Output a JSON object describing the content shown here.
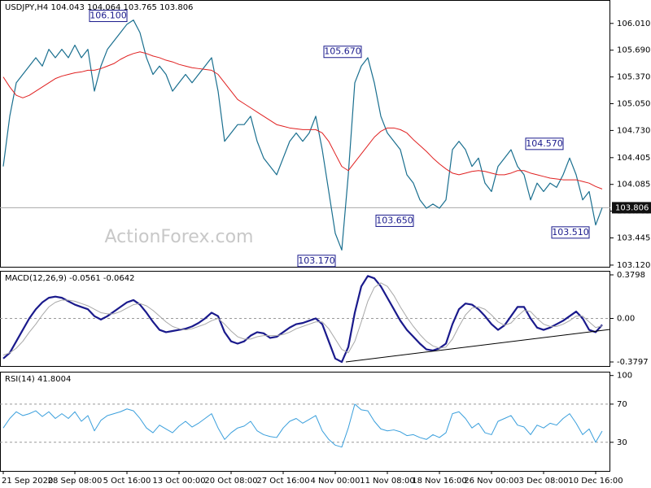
{
  "chart_data": [
    {
      "type": "line",
      "title": "USDJPY,H4 104.043 104.064 103.765 103.806",
      "watermark": "ActionForex.com",
      "ylim": [
        103.1,
        106.29
      ],
      "yticks": [
        {
          "value": 106.01,
          "label": "106.010"
        },
        {
          "value": 105.69,
          "label": "105.690"
        },
        {
          "value": 105.37,
          "label": "105.370"
        },
        {
          "value": 105.05,
          "label": "105.050"
        },
        {
          "value": 104.73,
          "label": "104.730"
        },
        {
          "value": 104.405,
          "label": "104.405"
        },
        {
          "value": 104.085,
          "label": "104.085"
        },
        {
          "value": 103.765,
          "label": "103.765"
        },
        {
          "value": 103.445,
          "label": "103.445"
        },
        {
          "value": 103.12,
          "label": "103.120"
        }
      ],
      "last_price": {
        "value": 103.806,
        "label": "103.806"
      },
      "annotations": [
        {
          "x": 19,
          "value": 106.1,
          "label": "106.100"
        },
        {
          "x": 55,
          "value": 105.67,
          "label": "105.670"
        },
        {
          "x": 51,
          "value": 103.17,
          "label": "103.170"
        },
        {
          "x": 63,
          "value": 103.65,
          "label": "103.650"
        },
        {
          "x": 86,
          "value": 104.57,
          "label": "104.570"
        },
        {
          "x": 90,
          "value": 103.51,
          "label": "103.510"
        }
      ],
      "series": [
        {
          "name": "USDJPY",
          "color": "#1a6f8f",
          "width": 1.2,
          "values": [
            104.3,
            104.9,
            105.3,
            105.4,
            105.5,
            105.6,
            105.5,
            105.7,
            105.6,
            105.7,
            105.6,
            105.75,
            105.6,
            105.7,
            105.2,
            105.5,
            105.7,
            105.8,
            105.9,
            106.0,
            106.05,
            105.9,
            105.6,
            105.4,
            105.5,
            105.4,
            105.2,
            105.3,
            105.4,
            105.3,
            105.4,
            105.5,
            105.6,
            105.2,
            104.6,
            104.7,
            104.8,
            104.8,
            104.9,
            104.6,
            104.4,
            104.3,
            104.2,
            104.4,
            104.6,
            104.7,
            104.6,
            104.7,
            104.9,
            104.5,
            104.0,
            103.5,
            103.3,
            104.2,
            105.3,
            105.5,
            105.6,
            105.3,
            104.9,
            104.7,
            104.6,
            104.5,
            104.2,
            104.1,
            103.9,
            103.8,
            103.85,
            103.8,
            103.9,
            104.5,
            104.6,
            104.5,
            104.3,
            104.4,
            104.1,
            104.0,
            104.3,
            104.4,
            104.5,
            104.3,
            104.2,
            103.9,
            104.1,
            104.0,
            104.1,
            104.05,
            104.2,
            104.4,
            104.2,
            103.9,
            104.0,
            103.6,
            103.806
          ]
        },
        {
          "name": "MA",
          "color": "#e02020",
          "width": 1,
          "values": [
            105.37,
            105.25,
            105.15,
            105.12,
            105.15,
            105.2,
            105.25,
            105.3,
            105.35,
            105.38,
            105.4,
            105.42,
            105.43,
            105.45,
            105.45,
            105.47,
            105.5,
            105.53,
            105.58,
            105.62,
            105.65,
            105.67,
            105.65,
            105.62,
            105.6,
            105.57,
            105.55,
            105.52,
            105.5,
            105.48,
            105.47,
            105.46,
            105.45,
            105.4,
            105.3,
            105.2,
            105.1,
            105.05,
            105.0,
            104.95,
            104.9,
            104.85,
            104.8,
            104.78,
            104.76,
            104.75,
            104.74,
            104.74,
            104.74,
            104.7,
            104.6,
            104.45,
            104.3,
            104.25,
            104.35,
            104.45,
            104.55,
            104.65,
            104.72,
            104.76,
            104.76,
            104.74,
            104.7,
            104.62,
            104.55,
            104.48,
            104.4,
            104.33,
            104.27,
            104.22,
            104.2,
            104.22,
            104.24,
            104.25,
            104.24,
            104.22,
            104.2,
            104.2,
            104.22,
            104.25,
            104.25,
            104.22,
            104.2,
            104.18,
            104.16,
            104.15,
            104.14,
            104.14,
            104.14,
            104.12,
            104.1,
            104.06,
            104.03
          ]
        }
      ]
    },
    {
      "type": "line",
      "title": "MACD(12,26,9) -0.0561 -0.0642",
      "ylim": [
        -0.415,
        0.415
      ],
      "yticks": [
        0.3798,
        {
          "value": 0,
          "label": "0.00"
        },
        -0.3797
      ],
      "levels": [
        0
      ],
      "series": [
        {
          "name": "MACD",
          "color": "#1a1a8c",
          "width": 2.2,
          "values": [
            -0.35,
            -0.3,
            -0.2,
            -0.1,
            0.0,
            0.08,
            0.14,
            0.18,
            0.19,
            0.18,
            0.15,
            0.12,
            0.1,
            0.08,
            0.02,
            -0.01,
            0.02,
            0.06,
            0.1,
            0.14,
            0.16,
            0.12,
            0.05,
            -0.03,
            -0.1,
            -0.12,
            -0.11,
            -0.1,
            -0.09,
            -0.07,
            -0.04,
            0.0,
            0.05,
            0.02,
            -0.12,
            -0.2,
            -0.22,
            -0.2,
            -0.15,
            -0.12,
            -0.13,
            -0.17,
            -0.16,
            -0.12,
            -0.08,
            -0.05,
            -0.04,
            -0.02,
            0.0,
            -0.05,
            -0.2,
            -0.35,
            -0.38,
            -0.25,
            0.05,
            0.28,
            0.37,
            0.35,
            0.28,
            0.18,
            0.08,
            -0.02,
            -0.1,
            -0.16,
            -0.22,
            -0.27,
            -0.28,
            -0.26,
            -0.22,
            -0.05,
            0.08,
            0.13,
            0.12,
            0.08,
            0.02,
            -0.05,
            -0.1,
            -0.06,
            0.02,
            0.1,
            0.1,
            0.0,
            -0.08,
            -0.1,
            -0.08,
            -0.05,
            -0.02,
            0.02,
            0.06,
            0.0,
            -0.1,
            -0.12,
            -0.0561
          ]
        },
        {
          "name": "Signal",
          "color": "#a8a8a8",
          "width": 1,
          "values": [
            -0.32,
            -0.3,
            -0.26,
            -0.2,
            -0.12,
            -0.05,
            0.03,
            0.1,
            0.14,
            0.16,
            0.16,
            0.15,
            0.13,
            0.11,
            0.08,
            0.05,
            0.04,
            0.04,
            0.06,
            0.09,
            0.12,
            0.13,
            0.11,
            0.07,
            0.02,
            -0.03,
            -0.07,
            -0.09,
            -0.1,
            -0.09,
            -0.07,
            -0.05,
            -0.02,
            0.0,
            -0.05,
            -0.11,
            -0.16,
            -0.18,
            -0.18,
            -0.16,
            -0.15,
            -0.15,
            -0.15,
            -0.14,
            -0.12,
            -0.09,
            -0.07,
            -0.05,
            -0.03,
            -0.03,
            -0.09,
            -0.18,
            -0.27,
            -0.3,
            -0.2,
            -0.03,
            0.15,
            0.27,
            0.31,
            0.28,
            0.2,
            0.1,
            0.01,
            -0.07,
            -0.14,
            -0.2,
            -0.24,
            -0.26,
            -0.25,
            -0.18,
            -0.07,
            0.03,
            0.09,
            0.1,
            0.08,
            0.03,
            -0.03,
            -0.06,
            -0.04,
            0.02,
            0.07,
            0.06,
            0.0,
            -0.05,
            -0.07,
            -0.07,
            -0.05,
            -0.02,
            0.02,
            0.02,
            -0.03,
            -0.08,
            -0.0642
          ]
        }
      ]
    },
    {
      "type": "line",
      "title": "RSI(14) 41.8004",
      "ylim": [
        0,
        104
      ],
      "yticks": [
        100,
        70,
        30
      ],
      "levels": [
        70,
        30
      ],
      "xticks": [
        {
          "value": 0,
          "label": "21 Sep 2020"
        },
        {
          "value": 11,
          "label": "28 Sep 08:00"
        },
        {
          "value": 19,
          "label": "5 Oct 16:00"
        },
        {
          "value": 27,
          "label": "13 Oct 00:00"
        },
        {
          "value": 35,
          "label": "20 Oct 08:00"
        },
        {
          "value": 43,
          "label": "27 Oct 16:00"
        },
        {
          "value": 51,
          "label": "4 Nov 00:00"
        },
        {
          "value": 59,
          "label": "11 Nov 08:00"
        },
        {
          "value": 67,
          "label": "18 Nov 16:00"
        },
        {
          "value": 75,
          "label": "26 Nov 00:00"
        },
        {
          "value": 83,
          "label": "3 Dec 08:00"
        },
        {
          "value": 91,
          "label": "10 Dec 16:00"
        }
      ],
      "series": [
        {
          "name": "RSI",
          "color": "#3a9fdc",
          "width": 1,
          "values": [
            45,
            55,
            62,
            58,
            60,
            63,
            57,
            62,
            55,
            60,
            55,
            62,
            52,
            58,
            42,
            53,
            58,
            60,
            62,
            65,
            63,
            55,
            45,
            40,
            48,
            44,
            40,
            47,
            52,
            46,
            50,
            55,
            60,
            45,
            33,
            40,
            45,
            47,
            52,
            42,
            38,
            36,
            35,
            45,
            52,
            55,
            50,
            54,
            58,
            42,
            33,
            27,
            25,
            45,
            70,
            64,
            63,
            52,
            44,
            42,
            43,
            41,
            37,
            38,
            35,
            33,
            38,
            35,
            40,
            60,
            62,
            55,
            45,
            50,
            40,
            38,
            52,
            55,
            58,
            48,
            46,
            38,
            48,
            45,
            50,
            48,
            55,
            60,
            50,
            38,
            44,
            30,
            41.8004
          ]
        }
      ]
    }
  ]
}
